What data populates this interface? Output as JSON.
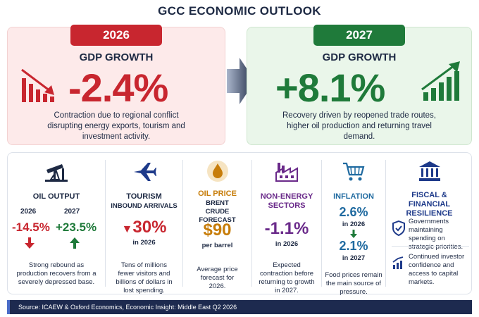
{
  "title": "GCC ECONOMIC OUTLOOK",
  "panels": {
    "y2026": {
      "year": "2026",
      "label": "GDP GROWTH",
      "value": "-2.4%",
      "desc": "Contraction due to regional conflict disrupting energy exports, tourism and investment activity."
    },
    "y2027": {
      "year": "2027",
      "label": "GDP GROWTH",
      "value": "+8.1%",
      "desc": "Recovery driven by reopened trade routes, higher oil production and returning travel demand."
    }
  },
  "cards": {
    "oil_output": {
      "title": "OIL OUTPUT",
      "y1": "2026",
      "v1": "-14.5%",
      "y2": "2027",
      "v2": "+23.5%",
      "desc": "Strong rebound as production recovers from a severely depressed base."
    },
    "tourism": {
      "title": "TOURISM",
      "subtitle": "INBOUND ARRIVALS",
      "value": "30%",
      "year": "in 2026",
      "desc": "Tens of millions fewer visitors and billions of dollars in lost spending."
    },
    "oil_price": {
      "title": "OIL PRICE",
      "subtitle": "BRENT CRUDE FORECAST",
      "value": "$90",
      "unit": "per barrel",
      "desc": "Average price forecast for 2026."
    },
    "non_energy": {
      "title": "NON-ENERGY SECTORS",
      "value": "-1.1%",
      "year": "in 2026",
      "desc": "Expected contraction before returning to growth in 2027."
    },
    "inflation": {
      "title": "INFLATION",
      "v1": "2.6%",
      "y1": "in 2026",
      "v2": "2.1%",
      "y2": "in 2027",
      "desc": "Food prices remain the main source of pressure."
    },
    "fiscal": {
      "title": "FISCAL & FINANCIAL RESILIENCE",
      "item1": "Governments maintaining spending on strategic priorities.",
      "item2": "Continued investor confidence and access to capital markets."
    }
  },
  "source": "Source: ICAEW & Oxford Economics, Economic Insight: Middle East Q2 2026",
  "colors": {
    "red": "#c8262f",
    "green": "#1f7a3a",
    "navy": "#1e2a44",
    "orange": "#c77d0a",
    "purple": "#6a2a8a"
  },
  "icons": [
    "falling-chart-icon",
    "forward-arrow-icon",
    "rising-chart-icon",
    "oil-pump-icon",
    "airplane-icon",
    "oil-drop-icon",
    "factory-icon",
    "shopping-cart-icon",
    "bank-icon",
    "shield-check-icon",
    "growth-chart-icon"
  ]
}
